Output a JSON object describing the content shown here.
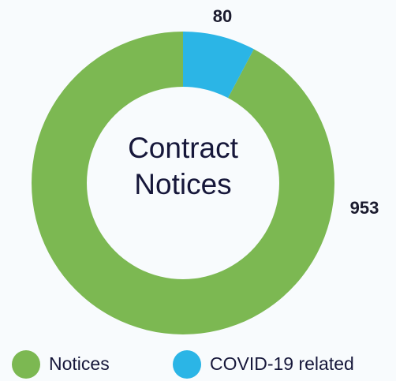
{
  "chart_data": {
    "type": "donut",
    "title": "Contract Notices",
    "categories": [
      "Notices",
      "COVID-19 related"
    ],
    "values": [
      953,
      80
    ],
    "colors": [
      "#7cb852",
      "#2bb5e6"
    ]
  }
}
